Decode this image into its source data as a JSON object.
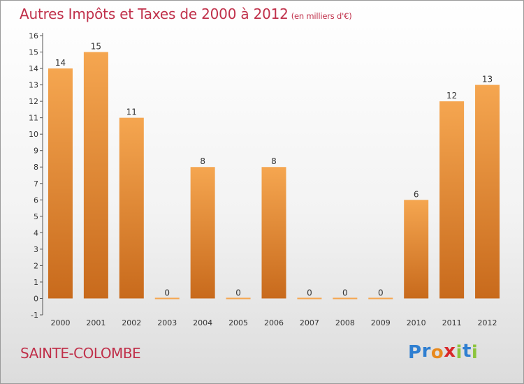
{
  "title": "Autres Impôts et Taxes de 2000 à 2012",
  "subtitle": "(en milliers d'€)",
  "commune": "SAINTE-COLOMBE",
  "brand": {
    "letters": [
      "P",
      "r",
      "o",
      "x",
      "i",
      "t",
      "i"
    ],
    "colors": [
      "#2f7fd1",
      "#2f7fd1",
      "#e8891d",
      "#d8282a",
      "#8cc43c",
      "#2f7fd1",
      "#8cc43c"
    ]
  },
  "colors": {
    "bar_light": "#f5a650",
    "bar_dark": "#c86a1c",
    "title": "#c0304a"
  },
  "chart_data": {
    "type": "bar",
    "categories": [
      "2000",
      "2001",
      "2002",
      "2003",
      "2004",
      "2005",
      "2006",
      "2007",
      "2008",
      "2009",
      "2010",
      "2011",
      "2012"
    ],
    "values": [
      14,
      15,
      11,
      0,
      8,
      0,
      8,
      0,
      0,
      0,
      6,
      12,
      13
    ],
    "ylim": [
      -1,
      16
    ],
    "yticks": [
      -1,
      0,
      1,
      2,
      3,
      4,
      5,
      6,
      7,
      8,
      9,
      10,
      11,
      12,
      13,
      14,
      15,
      16
    ],
    "grid": false
  }
}
